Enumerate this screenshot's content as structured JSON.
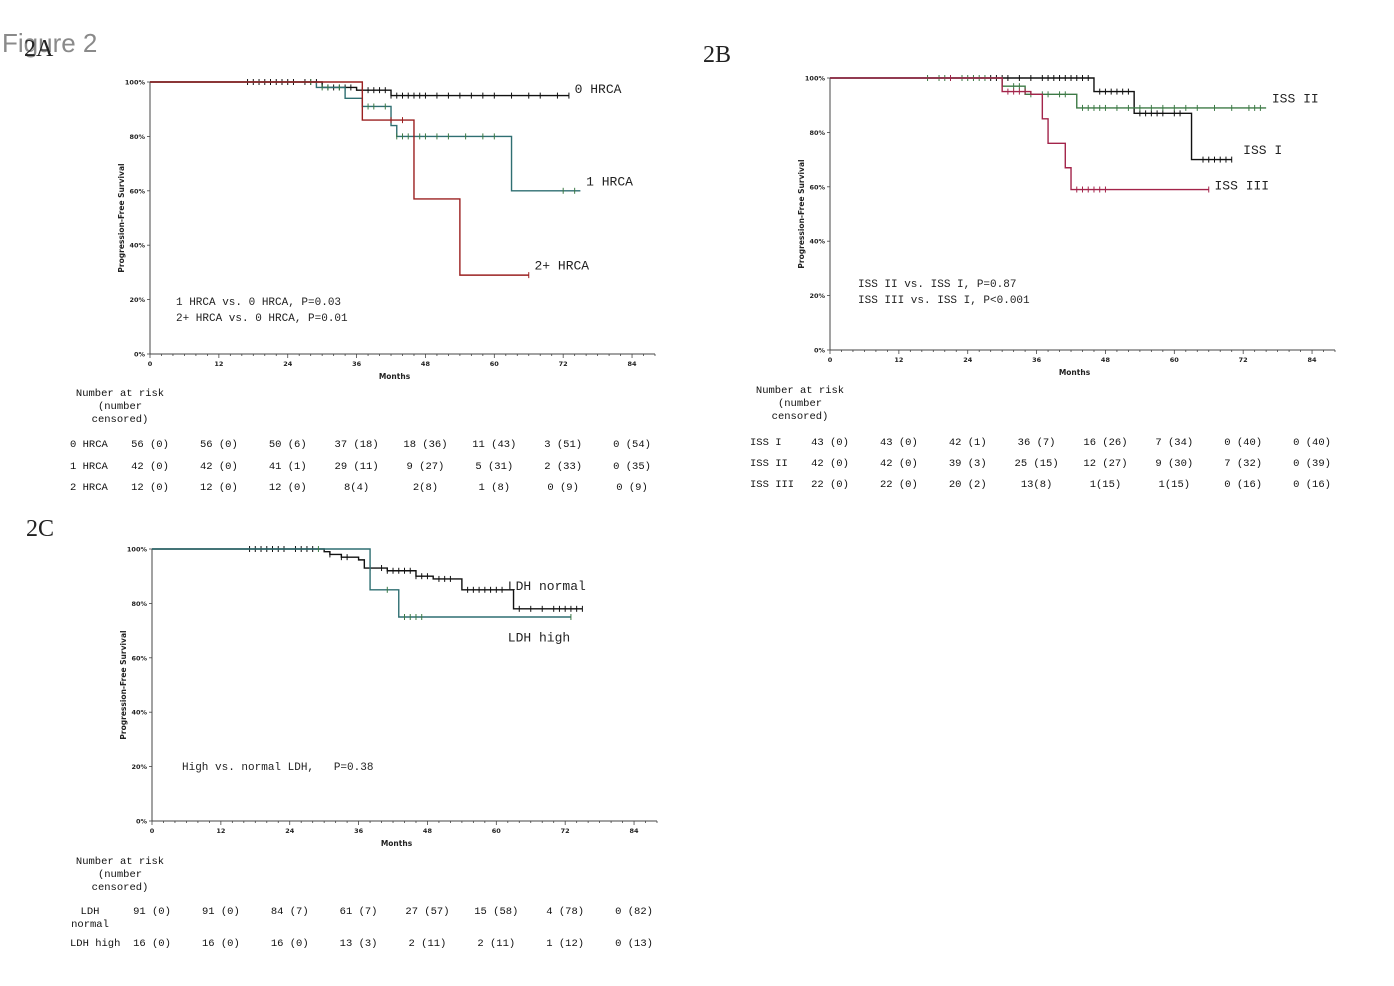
{
  "figure_title": "Figure 2",
  "colors": {
    "black": "#111111",
    "red": "#9b2020",
    "green": "#3d7a46",
    "teal": "#2f6f72",
    "magenta": "#a3244a"
  },
  "chart_data": [
    {
      "panel": "2A",
      "type": "line",
      "xlabel": "Months",
      "ylabel": "Progression-Free Survival",
      "xticks": [
        "0",
        "12",
        "24",
        "36",
        "48",
        "60",
        "72",
        "84"
      ],
      "yticks": [
        "0%",
        "20%",
        "40%",
        "60%",
        "80%",
        "100%"
      ],
      "xlim": [
        0,
        88
      ],
      "ylim": [
        0,
        1
      ],
      "annotations": [
        "1 HRCA vs. 0 HRCA, P=0.03",
        "2+ HRCA vs. 0 HRCA, P=0.01"
      ],
      "series": [
        {
          "name": "0 HRCA",
          "color": "#111111",
          "label_at": [
            74,
            0.96
          ],
          "steps": [
            [
              0,
              1
            ],
            [
              30,
              0.98
            ],
            [
              36,
              0.97
            ],
            [
              42,
              0.95
            ],
            [
              73,
              0.95
            ]
          ],
          "censors": [
            17,
            18,
            19,
            20,
            21,
            22,
            23,
            24,
            25,
            27,
            28,
            29,
            31,
            32,
            33,
            34,
            35,
            37,
            38,
            39,
            40,
            41,
            42,
            43,
            44,
            45,
            46,
            47,
            48,
            50,
            52,
            54,
            56,
            58,
            60,
            63,
            66,
            68,
            71,
            73
          ]
        },
        {
          "name": "1 HRCA",
          "color": "#3d7a46",
          "stepcolor": "#2f6f72",
          "label_at": [
            76,
            0.62
          ],
          "steps": [
            [
              0,
              1
            ],
            [
              29,
              0.98
            ],
            [
              34,
              0.94
            ],
            [
              37,
              0.91
            ],
            [
              42,
              0.84
            ],
            [
              43,
              0.8
            ],
            [
              63,
              0.8
            ],
            [
              63,
              0.6
            ],
            [
              75,
              0.6
            ]
          ],
          "censors": [
            28,
            30,
            31,
            33,
            38,
            39,
            41,
            43,
            44,
            45,
            46,
            47,
            48,
            50,
            52,
            55,
            58,
            60,
            72,
            74
          ]
        },
        {
          "name": "2+ HRCA",
          "color": "#9b2020",
          "label_at": [
            67,
            0.31
          ],
          "steps": [
            [
              0,
              1
            ],
            [
              37,
              1
            ],
            [
              37,
              0.86
            ],
            [
              46,
              0.86
            ],
            [
              46,
              0.57
            ],
            [
              54,
              0.57
            ],
            [
              54,
              0.29
            ],
            [
              66,
              0.29
            ]
          ],
          "censors": [
            42,
            44,
            66
          ]
        }
      ],
      "risk": {
        "header": [
          "Number at risk",
          "(number",
          "censored)"
        ],
        "rows": [
          {
            "label": "0 HRCA",
            "cells": [
              "56 (0)",
              "56 (0)",
              "50 (6)",
              "37 (18)",
              "18 (36)",
              "11 (43)",
              "3 (51)",
              "0 (54)"
            ]
          },
          {
            "label": "1 HRCA",
            "cells": [
              "42 (0)",
              "42 (0)",
              "41 (1)",
              "29 (11)",
              "9 (27)",
              "5 (31)",
              "2 (33)",
              "0 (35)"
            ]
          },
          {
            "label": "2 HRCA",
            "cells": [
              "12 (0)",
              "12 (0)",
              "12 (0)",
              "8(4)",
              "2(8)",
              "1 (8)",
              "0 (9)",
              "0 (9)"
            ]
          }
        ]
      }
    },
    {
      "panel": "2B",
      "type": "line",
      "xlabel": "Months",
      "ylabel": "Progression-Free Survival",
      "xticks": [
        "0",
        "12",
        "24",
        "36",
        "48",
        "60",
        "72",
        "84"
      ],
      "yticks": [
        "0%",
        "20%",
        "40%",
        "60%",
        "80%",
        "100%"
      ],
      "xlim": [
        0,
        88
      ],
      "ylim": [
        0,
        1
      ],
      "annotations": [
        "ISS II vs. ISS I, P=0.87",
        "ISS III vs. ISS I, P<0.001"
      ],
      "series": [
        {
          "name": "ISS I",
          "color": "#111111",
          "label_at": [
            72,
            0.72
          ],
          "steps": [
            [
              0,
              1
            ],
            [
              46,
              1
            ],
            [
              46,
              0.95
            ],
            [
              53,
              0.95
            ],
            [
              53,
              0.87
            ],
            [
              63,
              0.87
            ],
            [
              63,
              0.7
            ],
            [
              70,
              0.7
            ]
          ],
          "censors": [
            28,
            29,
            30,
            31,
            33,
            35,
            37,
            38,
            39,
            40,
            41,
            42,
            43,
            44,
            45,
            47,
            48,
            49,
            50,
            51,
            52,
            54,
            55,
            56,
            57,
            58,
            60,
            61,
            65,
            66,
            67,
            68,
            69,
            70
          ]
        },
        {
          "name": "ISS II",
          "color": "#3d7a46",
          "label_at": [
            77,
            0.91
          ],
          "steps": [
            [
              0,
              1
            ],
            [
              30,
              0.97
            ],
            [
              34,
              0.94
            ],
            [
              43,
              0.89
            ],
            [
              76,
              0.89
            ]
          ],
          "censors": [
            17,
            19,
            20,
            23,
            24,
            25,
            26,
            27,
            32,
            33,
            35,
            37,
            38,
            40,
            41,
            44,
            45,
            46,
            47,
            48,
            50,
            52,
            54,
            56,
            58,
            60,
            62,
            64,
            67,
            70,
            73,
            74,
            75
          ]
        },
        {
          "name": "ISS III",
          "color": "#a3244a",
          "label_at": [
            67,
            0.59
          ],
          "steps": [
            [
              0,
              1
            ],
            [
              30,
              0.95
            ],
            [
              35,
              0.94
            ],
            [
              37,
              0.85
            ],
            [
              38,
              0.76
            ],
            [
              41,
              0.67
            ],
            [
              42,
              0.59
            ],
            [
              66,
              0.59
            ]
          ],
          "censors": [
            21,
            31,
            32,
            33,
            34,
            43,
            44,
            45,
            46,
            47,
            48,
            66
          ]
        }
      ],
      "risk": {
        "header": [
          "Number at risk",
          "(number",
          "censored)"
        ],
        "rows": [
          {
            "label": "ISS I",
            "cells": [
              "43 (0)",
              "43 (0)",
              "42 (1)",
              "36 (7)",
              "16 (26)",
              "7 (34)",
              "0 (40)",
              "0 (40)"
            ]
          },
          {
            "label": "ISS II",
            "cells": [
              "42 (0)",
              "42 (0)",
              "39 (3)",
              "25 (15)",
              "12 (27)",
              "9 (30)",
              "7 (32)",
              "0 (39)"
            ]
          },
          {
            "label": "ISS III",
            "cells": [
              "22 (0)",
              "22 (0)",
              "20 (2)",
              "13(8)",
              "1(15)",
              "1(15)",
              "0 (16)",
              "0 (16)"
            ]
          }
        ]
      }
    },
    {
      "panel": "2C",
      "type": "line",
      "xlabel": "Months",
      "ylabel": "Progression-Free Survival",
      "xticks": [
        "0",
        "12",
        "24",
        "36",
        "48",
        "60",
        "72",
        "84"
      ],
      "yticks": [
        "0%",
        "20%",
        "40%",
        "60%",
        "80%",
        "100%"
      ],
      "xlim": [
        0,
        88
      ],
      "ylim": [
        0,
        1
      ],
      "annotations": [
        "High vs. normal LDH,   P=0.38"
      ],
      "series": [
        {
          "name": "LDH normal",
          "color": "#111111",
          "label_at": [
            62,
            0.85
          ],
          "steps": [
            [
              0,
              1
            ],
            [
              30,
              0.99
            ],
            [
              31,
              0.98
            ],
            [
              33,
              0.97
            ],
            [
              36,
              0.96
            ],
            [
              37,
              0.93
            ],
            [
              41,
              0.92
            ],
            [
              46,
              0.9
            ],
            [
              49,
              0.89
            ],
            [
              54,
              0.85
            ],
            [
              62,
              0.85
            ],
            [
              63,
              0.78
            ],
            [
              75,
              0.78
            ]
          ],
          "censors": [
            17,
            18,
            19,
            20,
            21,
            22,
            23,
            25,
            26,
            27,
            28,
            31,
            33,
            34,
            38,
            40,
            41,
            42,
            43,
            44,
            45,
            46,
            47,
            48,
            50,
            51,
            52,
            55,
            56,
            57,
            58,
            59,
            60,
            61,
            64,
            66,
            68,
            70,
            71,
            72,
            73,
            74,
            75
          ]
        },
        {
          "name": "LDH high",
          "color": "#3d7a46",
          "stepcolor": "#2f6f72",
          "label_at": [
            62,
            0.66
          ],
          "steps": [
            [
              0,
              1
            ],
            [
              38,
              1
            ],
            [
              38,
              0.85
            ],
            [
              43,
              0.85
            ],
            [
              43,
              0.75
            ],
            [
              73,
              0.75
            ]
          ],
          "censors": [
            29,
            41,
            44,
            45,
            46,
            47,
            73
          ]
        }
      ],
      "risk": {
        "header": [
          "Number at risk",
          "(number",
          "censored)"
        ],
        "rows": [
          {
            "label": "LDH normal",
            "cells": [
              "91 (0)",
              "91 (0)",
              "84 (7)",
              "61 (7)",
              "27 (57)",
              "15 (58)",
              "4 (78)",
              "0 (82)"
            ]
          },
          {
            "label": "LDH high",
            "cells": [
              "16 (0)",
              "16 (0)",
              "16 (0)",
              "13 (3)",
              "2 (11)",
              "2 (11)",
              "1 (12)",
              "0 (13)"
            ]
          }
        ]
      }
    }
  ]
}
